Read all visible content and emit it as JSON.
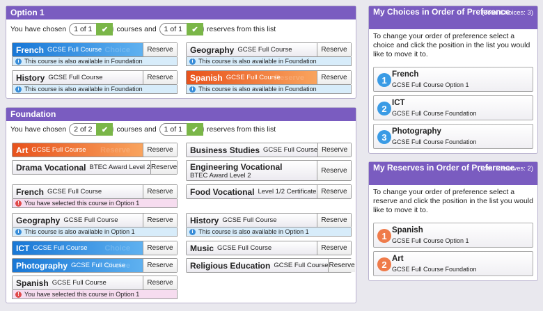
{
  "option1": {
    "title": "Option 1",
    "chosen_prefix": "You have chosen",
    "chosen_count": "1 of 1",
    "courses_and": "courses and",
    "reserves_count": "1 of 1",
    "reserves_suffix": "reserves from this list",
    "courses": [
      {
        "name": "French",
        "sub": "GCSE Full Course",
        "ghost": "Choice",
        "style": "blue",
        "reserve": "Reserve",
        "note": "This course is also available in Foundation",
        "note_type": "blue"
      },
      {
        "name": "Geography",
        "sub": "GCSE Full Course",
        "ghost": "",
        "style": "plain",
        "reserve": "Reserve",
        "note": "This course is also available in Foundation",
        "note_type": "blue"
      },
      {
        "name": "History",
        "sub": "GCSE Full Course",
        "ghost": "",
        "style": "plain",
        "reserve": "Reserve",
        "note": "This course is also available in Foundation",
        "note_type": "blue"
      },
      {
        "name": "Spanish",
        "sub": "GCSE Full Course",
        "ghost": "Reserve",
        "style": "orange",
        "reserve": "Reserve",
        "note": "This course is also available in Foundation",
        "note_type": "blue"
      }
    ]
  },
  "foundation": {
    "title": "Foundation",
    "chosen_prefix": "You have chosen",
    "chosen_count": "2 of 2",
    "courses_and": "courses and",
    "reserves_count": "1 of 1",
    "reserves_suffix": "reserves from this list",
    "courses": [
      {
        "name": "Art",
        "sub": "GCSE Full Course",
        "ghost": "Reserve",
        "style": "orange",
        "reserve": "Reserve"
      },
      {
        "name": "Business Studies",
        "sub": "GCSE Full Course",
        "ghost": "",
        "style": "plain",
        "reserve": "Reserve"
      },
      {
        "name": "Drama Vocational",
        "sub": "BTEC Award Level 2",
        "ghost": "",
        "style": "plain",
        "reserve": "Reserve"
      },
      {
        "name": "Engineering Vocational",
        "sub": "BTEC Award Level 2",
        "ghost": "",
        "style": "plain",
        "reserve": "Reserve"
      },
      {
        "name": "French",
        "sub": "GCSE Full Course",
        "ghost": "",
        "style": "plain",
        "reserve": "Reserve",
        "note": "You have selected this course in Option 1",
        "note_type": "pink"
      },
      {
        "name": "Food Vocational",
        "sub": "Level 1/2 Certificate",
        "ghost": "",
        "style": "plain",
        "reserve": "Reserve"
      },
      {
        "name": "Geography",
        "sub": "GCSE Full Course",
        "ghost": "",
        "style": "plain",
        "reserve": "Reserve",
        "note": "This course is also available in Option 1",
        "note_type": "blue"
      },
      {
        "name": "History",
        "sub": "GCSE Full Course",
        "ghost": "",
        "style": "plain",
        "reserve": "Reserve",
        "note": "This course is also available in Option 1",
        "note_type": "blue"
      },
      {
        "name": "ICT",
        "sub": "GCSE Full Course",
        "ghost": "Choice",
        "style": "blue",
        "reserve": "Reserve"
      },
      {
        "name": "Music",
        "sub": "GCSE Full Course",
        "ghost": "",
        "style": "plain",
        "reserve": "Reserve"
      },
      {
        "name": "Photography",
        "sub": "GCSE Full Course",
        "ghost": "Choice",
        "style": "blue",
        "reserve": "Reserve"
      },
      {
        "name": "Religious Education",
        "sub": "GCSE Full Course",
        "ghost": "",
        "style": "plain",
        "reserve": "Reserve"
      },
      {
        "name": "Spanish",
        "sub": "GCSE Full Course",
        "ghost": "",
        "style": "plain",
        "reserve": "Reserve",
        "note": "You have selected this course in Option 1",
        "note_type": "pink"
      }
    ]
  },
  "choices": {
    "title": "My Choices in Order of Preference",
    "total": "(Total Choices: 3)",
    "desc": "To change your order of preference select a choice and click the position in the list you would like to move it to.",
    "items": [
      {
        "num": "1",
        "name": "French",
        "sub": "GCSE Full Course Option 1"
      },
      {
        "num": "2",
        "name": "ICT",
        "sub": "GCSE Full Course Foundation"
      },
      {
        "num": "3",
        "name": "Photography",
        "sub": "GCSE Full Course Foundation"
      }
    ]
  },
  "reserves": {
    "title": "My Reserves in Order of Preference",
    "total": "(Total Reserves: 2)",
    "desc": "To change your order of preference select a reserve and click the position in the list you would like to move it to.",
    "items": [
      {
        "num": "1",
        "name": "Spanish",
        "sub": "GCSE Full Course Option 1"
      },
      {
        "num": "2",
        "name": "Art",
        "sub": "GCSE Full Course Foundation"
      }
    ]
  },
  "colors": {
    "header": "#7a5cc0",
    "choice": "#1877d6",
    "reserve": "#e8521c",
    "check": "#7ab648"
  },
  "icons": {
    "check": "check-icon",
    "info": "info-icon",
    "warning": "warning-icon"
  }
}
